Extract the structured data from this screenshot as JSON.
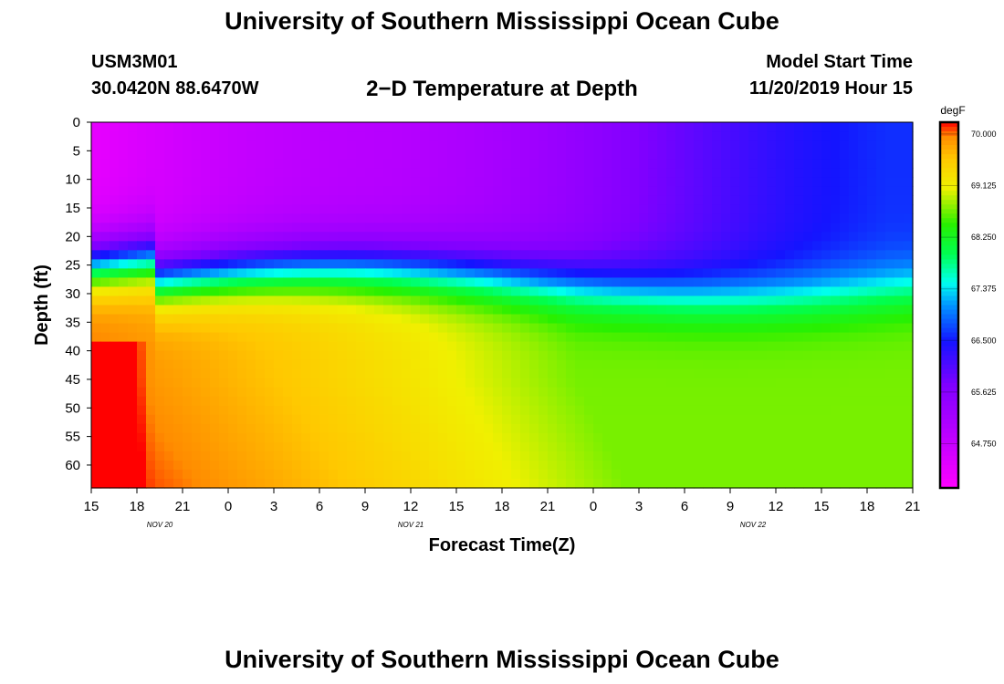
{
  "header": {
    "title": "University of Southern Mississippi Ocean Cube",
    "station": "USM3M01",
    "coords": "30.0420N 88.6470W",
    "plot_title": "2−D Temperature at Depth",
    "start_label": "Model Start Time",
    "start_value": "11/20/2019 Hour 15"
  },
  "footer": {
    "title": "University of Southern Mississippi Ocean Cube"
  },
  "chart_data": {
    "type": "heatmap",
    "title": "2-D Temperature at Depth",
    "xlabel": "Forecast Time(Z)",
    "ylabel": "Depth (ft)",
    "x_ticks": [
      "15",
      "18",
      "21",
      "0",
      "3",
      "6",
      "9",
      "12",
      "15",
      "18",
      "21",
      "0",
      "3",
      "6",
      "9",
      "12",
      "15",
      "18",
      "21"
    ],
    "x_range_hours": [
      0,
      54
    ],
    "date_labels": [
      {
        "text": "NOV 20",
        "hour": 4.5
      },
      {
        "text": "NOV 21",
        "hour": 21
      },
      {
        "text": "NOV 22",
        "hour": 43.5
      }
    ],
    "y_ticks": [
      0,
      5,
      10,
      15,
      20,
      25,
      30,
      35,
      40,
      45,
      50,
      55,
      60
    ],
    "ylim": [
      0,
      64
    ],
    "colorbar": {
      "unit": "degF",
      "ticks": [
        "70.000",
        "69.125",
        "68.250",
        "67.375",
        "66.500",
        "65.625",
        "64.750"
      ],
      "tick_values": [
        70.0,
        69.125,
        68.25,
        67.375,
        66.5,
        65.625,
        64.75
      ],
      "range": [
        64.0,
        70.2
      ]
    },
    "description_values": {
      "surface_range_degF": [
        65.0,
        66.6
      ],
      "thermocline_depth_ft": [
        22,
        32
      ],
      "bottom_range_degF": [
        69.0,
        70.2
      ]
    }
  }
}
